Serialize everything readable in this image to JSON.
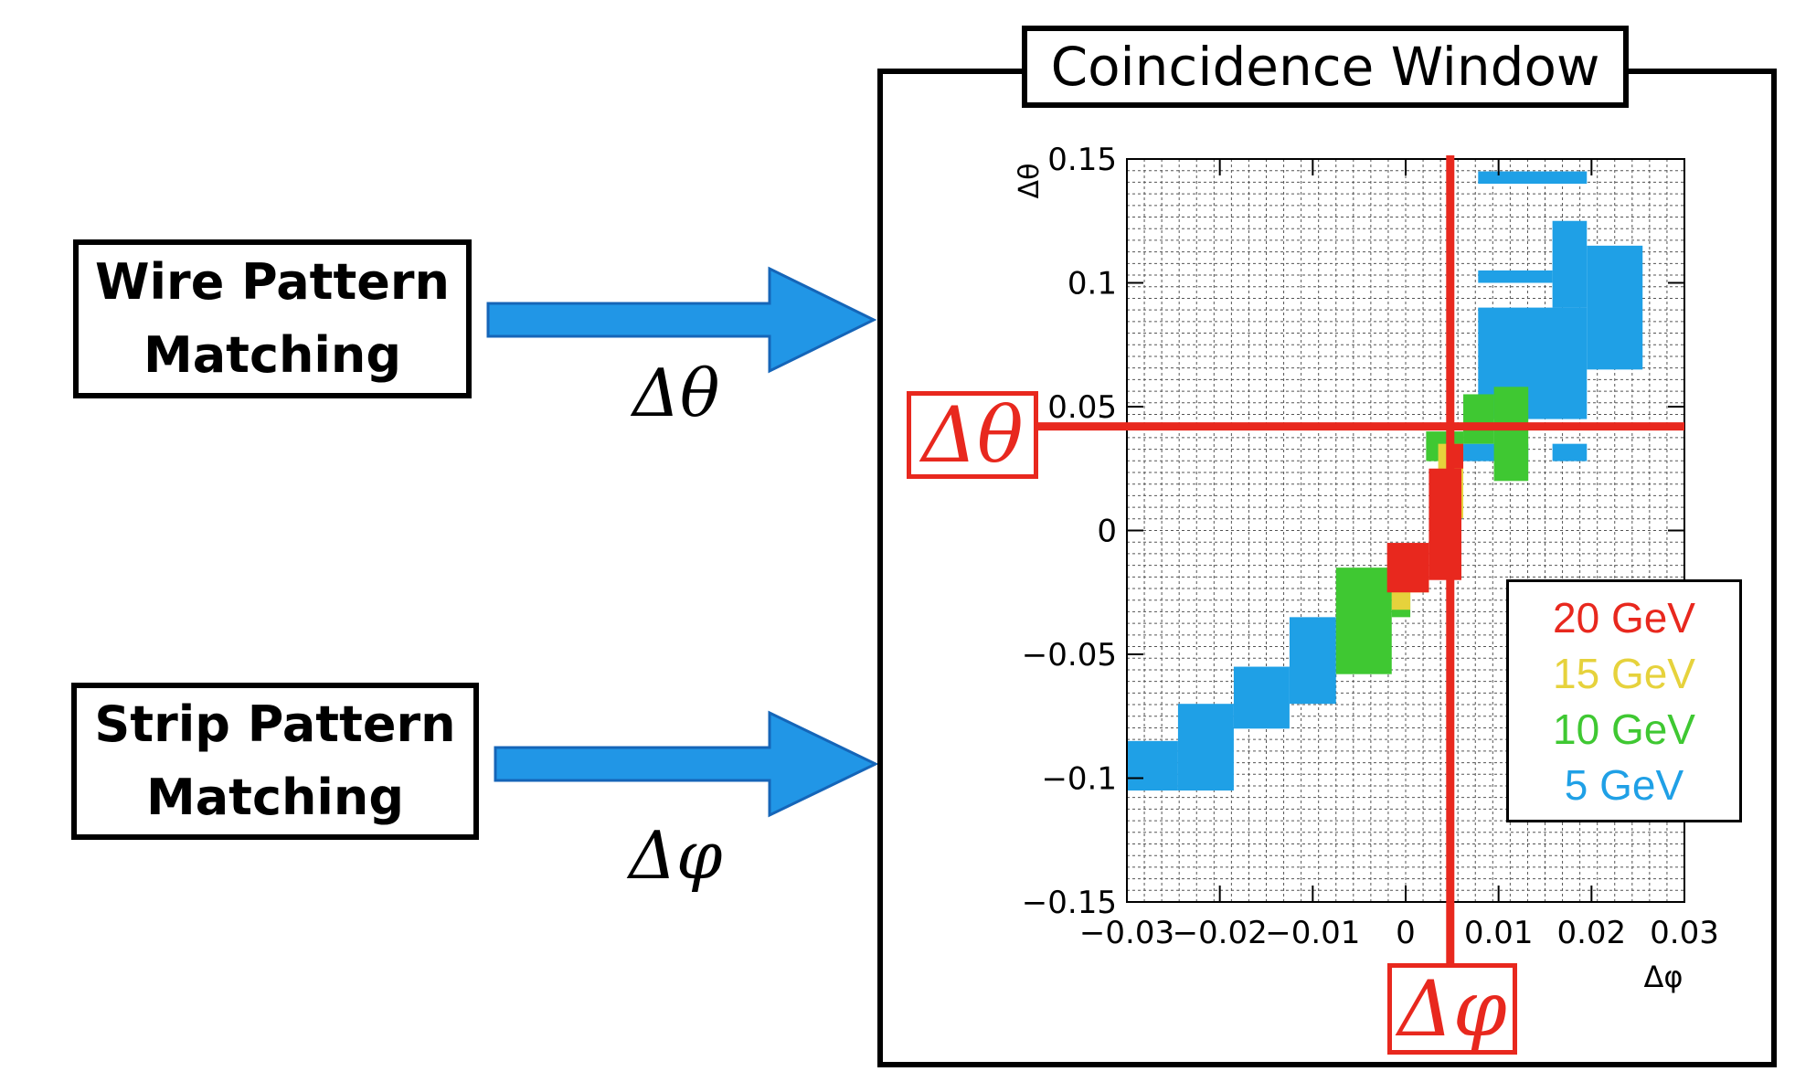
{
  "left": {
    "wire_line1": "Wire Pattern",
    "wire_line2": "Matching",
    "strip_line1": "Strip Pattern",
    "strip_line2": "Matching",
    "dtheta": "Δθ",
    "dphi": "Δφ"
  },
  "window": {
    "title": "Coincidence Window",
    "highlight_theta": "Δθ",
    "highlight_phi": "Δφ"
  },
  "colors": {
    "arrow": "#2196e6",
    "highlight": "#e8281e",
    "20": "#e8281e",
    "15": "#e6d23c",
    "10": "#3fc832",
    "5": "#1fa0e6"
  },
  "chart_data": {
    "type": "heatmap",
    "xlabel": "Δφ",
    "ylabel": "Δθ",
    "xlim": [
      -0.03,
      0.03
    ],
    "ylim": [
      -0.15,
      0.15
    ],
    "x_ticks": [
      "−0.03",
      "−0.02",
      "−0.01",
      "0",
      "0.01",
      "0.02",
      "0.03"
    ],
    "y_ticks": [
      "0.15",
      "0.1",
      "0.05",
      "0",
      "−0.05",
      "−0.1",
      "−0.15"
    ],
    "x_tick_values": [
      -0.03,
      -0.02,
      -0.01,
      0,
      0.01,
      0.02,
      0.03
    ],
    "y_tick_values": [
      0.15,
      0.1,
      0.05,
      0,
      -0.05,
      -0.1,
      -0.15
    ],
    "grid": true,
    "legend": {
      "placement": "bottom-right",
      "entries": [
        {
          "label": "20 GeV",
          "color": "#e8281e"
        },
        {
          "label": "15 GeV",
          "color": "#e6d23c"
        },
        {
          "label": "10 GeV",
          "color": "#3fc832"
        },
        {
          "label": "5 GeV",
          "color": "#1fa0e6"
        }
      ]
    },
    "highlight_cut": {
      "dphi": 0.0048,
      "dtheta": 0.042
    },
    "regions": {
      "5 GeV": [
        [
          -0.03,
          -0.0245,
          -0.105,
          -0.085
        ],
        [
          -0.0245,
          -0.0185,
          -0.105,
          -0.07
        ],
        [
          -0.0185,
          -0.0125,
          -0.08,
          -0.055
        ],
        [
          -0.0125,
          -0.0075,
          -0.07,
          -0.035
        ],
        [
          0.0062,
          0.0132,
          0.028,
          0.035
        ],
        [
          0.0078,
          0.0195,
          0.045,
          0.09
        ],
        [
          0.0078,
          0.0158,
          0.1,
          0.105
        ],
        [
          0.0078,
          0.0195,
          0.14,
          0.145
        ],
        [
          0.0158,
          0.0195,
          0.09,
          0.125
        ],
        [
          0.0158,
          0.0195,
          0.028,
          0.035
        ],
        [
          0.0195,
          0.0255,
          0.065,
          0.115
        ]
      ],
      "10 GeV": [
        [
          -0.0075,
          -0.0015,
          -0.058,
          -0.015
        ],
        [
          -0.0015,
          0.0005,
          -0.035,
          -0.0175
        ],
        [
          0.0022,
          0.0062,
          0.028,
          0.04
        ],
        [
          0.0062,
          0.0095,
          0.035,
          0.055
        ],
        [
          0.0095,
          0.0132,
          0.02,
          0.058
        ]
      ],
      "15 GeV": [
        [
          -0.0015,
          0.0005,
          -0.032,
          -0.02
        ],
        [
          0.0005,
          0.0025,
          -0.025,
          -0.02
        ],
        [
          0.0035,
          0.0062,
          0.02,
          0.035
        ],
        [
          0.005,
          0.0062,
          0.005,
          0.02
        ]
      ],
      "20 GeV": [
        [
          -0.002,
          0.0025,
          -0.025,
          -0.005
        ],
        [
          0.0025,
          0.006,
          -0.02,
          0.025
        ],
        [
          0.0045,
          0.0062,
          0.025,
          0.035
        ]
      ]
    }
  }
}
